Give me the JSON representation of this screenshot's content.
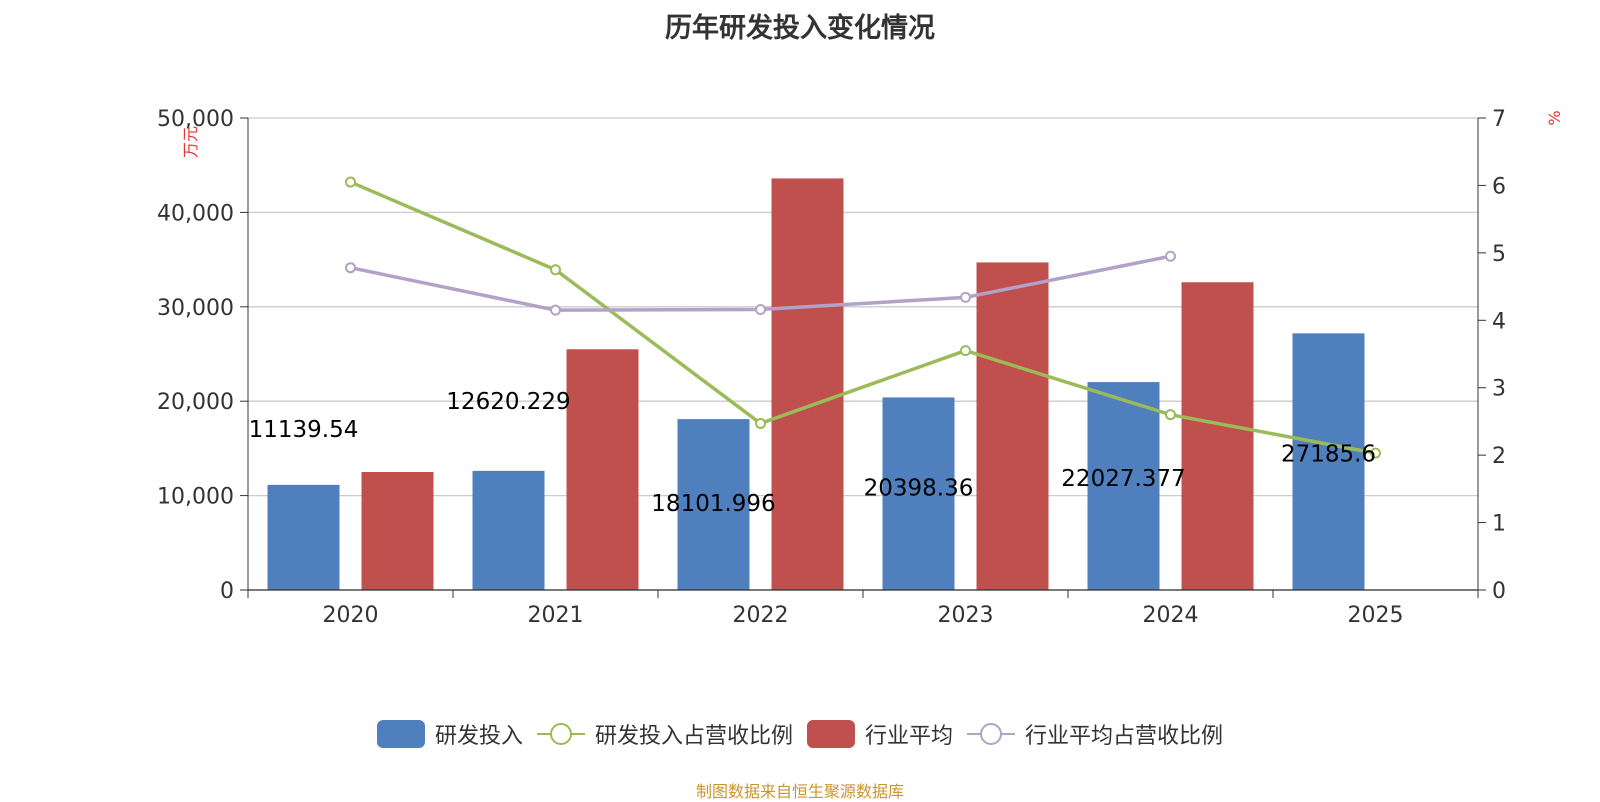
{
  "title": "历年研发投入变化情况",
  "source": "制图数据来自恒生聚源数据库",
  "chart_data": {
    "type": "bar",
    "categories": [
      "2020",
      "2021",
      "2022",
      "2023",
      "2024",
      "2025"
    ],
    "y_left": {
      "label": "万元",
      "ylim": [
        0,
        50000
      ],
      "ticks": [
        "0",
        "10,000",
        "20,000",
        "30,000",
        "40,000",
        "50,000"
      ],
      "tick_values": [
        0,
        10000,
        20000,
        30000,
        40000,
        50000
      ]
    },
    "y_right": {
      "label": "%",
      "ylim": [
        0,
        7
      ],
      "ticks": [
        "0",
        "1",
        "2",
        "3",
        "4",
        "5",
        "6",
        "7"
      ],
      "tick_values": [
        0,
        1,
        2,
        3,
        4,
        5,
        6,
        7
      ]
    },
    "grid": true,
    "legend_position": "bottom",
    "series": [
      {
        "name": "研发投入",
        "type": "bar",
        "axis": "left",
        "color": "#4f7fbd",
        "values": [
          11139.54,
          12620.229,
          18101.996,
          20398.36,
          22027.377,
          27185.6
        ],
        "labels": [
          "11139.54",
          "12620.229",
          "18101.996",
          "20398.36",
          "22027.377",
          "27185.6"
        ]
      },
      {
        "name": "研发投入占营收比例",
        "type": "line",
        "axis": "right",
        "color": "#9bbb59",
        "values": [
          6.05,
          4.75,
          2.47,
          3.55,
          2.6,
          2.03
        ]
      },
      {
        "name": "行业平均",
        "type": "bar",
        "axis": "left",
        "color": "#c0504d",
        "values": [
          12500,
          25500,
          43600,
          34700,
          32600,
          null
        ]
      },
      {
        "name": "行业平均占营收比例",
        "type": "line",
        "axis": "right",
        "color": "#b3a2c7",
        "values": [
          4.78,
          4.15,
          4.16,
          4.34,
          4.95,
          null
        ]
      }
    ]
  }
}
